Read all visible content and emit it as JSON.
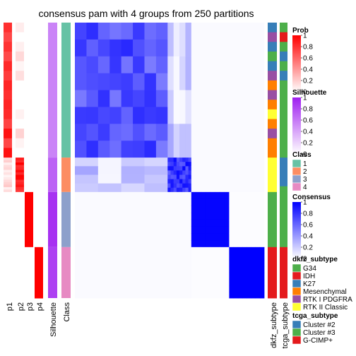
{
  "chart_data": {
    "type": "heatmap",
    "title": "consensus pam with 4 groups from 250 partitions",
    "column_labels": [
      "p1",
      "p2",
      "p3",
      "p4",
      "Silhouette",
      "Class",
      "dkfz_subtype",
      "tcga_subtype"
    ],
    "groups": [
      {
        "class": 1,
        "fraction": 0.49
      },
      {
        "class": 2,
        "fraction": 0.125
      },
      {
        "class": 3,
        "fraction": 0.2
      },
      {
        "class": 4,
        "fraction": 0.185
      }
    ],
    "membership_profile": [
      {
        "class": 1,
        "p": [
          0.82,
          0.06,
          0.0,
          0.0
        ],
        "silhouette": 0.55
      },
      {
        "class": 2,
        "p": [
          0.15,
          0.88,
          0.0,
          0.0
        ],
        "silhouette": 0.7
      },
      {
        "class": 3,
        "p": [
          0.0,
          0.0,
          1.0,
          0.0
        ],
        "silhouette": 0.92
      },
      {
        "class": 4,
        "p": [
          0.0,
          0.0,
          0.0,
          1.0
        ],
        "silhouette": 0.85
      }
    ],
    "consensus_blocks": [
      [
        0.68,
        0.18,
        0.02,
        0.02
      ],
      [
        0.18,
        0.8,
        0.02,
        0.02
      ],
      [
        0.02,
        0.02,
        0.98,
        0.01
      ],
      [
        0.02,
        0.02,
        0.01,
        1.0
      ]
    ],
    "legends": [
      {
        "title": "Prob",
        "ticks": [
          "1",
          "0.8",
          "0.6",
          "0.4",
          "0.2",
          "0"
        ],
        "low": "#ffffff",
        "high": "#ff0000"
      },
      {
        "title": "Silhouette",
        "ticks": [
          "1",
          "0.8",
          "0.6",
          "0.4",
          "0.2",
          "0"
        ],
        "low": "#ffffff",
        "high": "#9f1ff0"
      },
      {
        "title": "Class",
        "items": [
          {
            "label": "1",
            "color": "#66c2a5"
          },
          {
            "label": "2",
            "color": "#fc8d62"
          },
          {
            "label": "3",
            "color": "#8da0cb"
          },
          {
            "label": "4",
            "color": "#e78ac3"
          }
        ]
      },
      {
        "title": "Consensus",
        "ticks": [
          "1",
          "0.8",
          "0.6",
          "0.4",
          "0.2",
          "0"
        ],
        "low": "#ffffff",
        "high": "#0000ff"
      },
      {
        "title": "dkfz_subtype",
        "items": [
          {
            "label": "G34",
            "color": "#4daf4a"
          },
          {
            "label": "IDH",
            "color": "#e41a1c"
          },
          {
            "label": "K27",
            "color": "#377eb8"
          },
          {
            "label": "Mesenchymal",
            "color": "#ff7f00"
          },
          {
            "label": "RTK I PDGFRA",
            "color": "#984ea3"
          },
          {
            "label": "RTK II Classic",
            "color": "#ffff33"
          }
        ]
      },
      {
        "title": "tcga_subtype",
        "items": [
          {
            "label": "Cluster #2",
            "color": "#377eb8"
          },
          {
            "label": "Cluster #3",
            "color": "#4daf4a"
          },
          {
            "label": "G-CIMP+",
            "color": "#e41a1c"
          }
        ]
      }
    ]
  }
}
